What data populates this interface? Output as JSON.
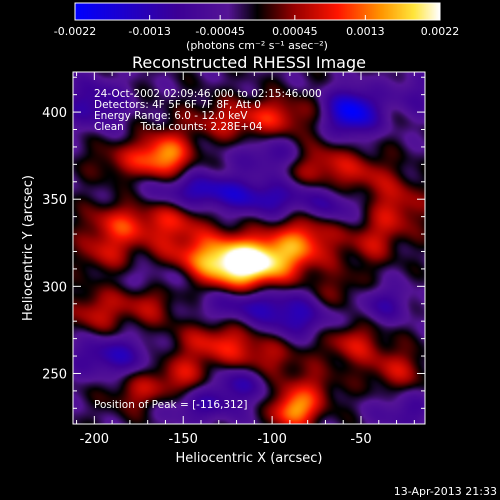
{
  "chart_data": {
    "type": "heatmap",
    "title": "Reconstructed RHESSI Image",
    "xlabel": "Heliocentric X (arcsec)",
    "ylabel": "Heliocentric Y (arcsec)",
    "xlim": [
      -212,
      -14
    ],
    "ylim": [
      221,
      423
    ],
    "x_ticks": [
      -200,
      -150,
      -100,
      -50
    ],
    "y_ticks": [
      250,
      300,
      350,
      400
    ],
    "colorbar": {
      "min": -0.0022,
      "max": 0.0022,
      "tick_values": [
        -0.0022,
        -0.0013,
        -0.00045,
        0.00045,
        0.0013,
        0.0022
      ],
      "tick_labels": [
        "-0.0022",
        "-0.0013",
        "-0.00045",
        "0.00045",
        "0.0013",
        "0.0022"
      ],
      "units_label": "(photons cm⁻² s⁻¹ asec⁻²)"
    },
    "annotations": [
      "24-Oct-2002 02:09:46.000 to 02:15:46.000",
      "Detectors: 4F 5F 6F 7F 8F, Att 0",
      "Energy Range: 6.0 - 12.0 keV",
      "Clean     Total counts: 2.28E+04"
    ],
    "peak_label": "Position of Peak = [-116,312]",
    "peak": [
      -116,
      312
    ],
    "blobs": [
      {
        "x": -116,
        "y": 312,
        "sx": 16,
        "sy": 10,
        "v": 0.0022
      },
      {
        "x": -140,
        "y": 316,
        "sx": 18,
        "sy": 11,
        "v": 0.0011
      },
      {
        "x": -95,
        "y": 318,
        "sx": 16,
        "sy": 9,
        "v": 0.001
      },
      {
        "x": -80,
        "y": 330,
        "sx": 12,
        "sy": 10,
        "v": 0.001
      },
      {
        "x": -160,
        "y": 375,
        "sx": 10,
        "sy": 9,
        "v": 0.0016
      },
      {
        "x": -182,
        "y": 372,
        "sx": 14,
        "sy": 8,
        "v": 0.0007
      },
      {
        "x": -125,
        "y": 395,
        "sx": 18,
        "sy": 8,
        "v": 0.0008
      },
      {
        "x": -95,
        "y": 398,
        "sx": 14,
        "sy": 8,
        "v": 0.0008
      },
      {
        "x": -185,
        "y": 335,
        "sx": 14,
        "sy": 9,
        "v": 0.0011
      },
      {
        "x": -155,
        "y": 338,
        "sx": 12,
        "sy": 9,
        "v": 0.0008
      },
      {
        "x": -75,
        "y": 370,
        "sx": 12,
        "sy": 9,
        "v": 0.0009
      },
      {
        "x": -50,
        "y": 365,
        "sx": 12,
        "sy": 9,
        "v": 0.0007
      },
      {
        "x": -30,
        "y": 345,
        "sx": 12,
        "sy": 12,
        "v": 0.0009
      },
      {
        "x": -45,
        "y": 325,
        "sx": 10,
        "sy": 9,
        "v": 0.0007
      },
      {
        "x": -170,
        "y": 290,
        "sx": 14,
        "sy": 9,
        "v": 0.0008
      },
      {
        "x": -200,
        "y": 285,
        "sx": 10,
        "sy": 9,
        "v": 0.0008
      },
      {
        "x": -130,
        "y": 268,
        "sx": 16,
        "sy": 8,
        "v": 0.001
      },
      {
        "x": -105,
        "y": 258,
        "sx": 14,
        "sy": 8,
        "v": 0.0007
      },
      {
        "x": -150,
        "y": 248,
        "sx": 14,
        "sy": 9,
        "v": 0.0009
      },
      {
        "x": -175,
        "y": 238,
        "sx": 12,
        "sy": 8,
        "v": 0.0007
      },
      {
        "x": -55,
        "y": 268,
        "sx": 12,
        "sy": 9,
        "v": 0.0009
      },
      {
        "x": -80,
        "y": 240,
        "sx": 12,
        "sy": 9,
        "v": 0.0008
      },
      {
        "x": -88,
        "y": 228,
        "sx": 8,
        "sy": 7,
        "v": 0.0016
      },
      {
        "x": -30,
        "y": 252,
        "sx": 12,
        "sy": 9,
        "v": 0.0008
      },
      {
        "x": -60,
        "y": 295,
        "sx": 12,
        "sy": 9,
        "v": 0.0007
      },
      {
        "x": -195,
        "y": 318,
        "sx": 10,
        "sy": 8,
        "v": 0.0007
      },
      {
        "x": -55,
        "y": 400,
        "sx": 10,
        "sy": 9,
        "v": -0.002
      },
      {
        "x": -20,
        "y": 410,
        "sx": 10,
        "sy": 9,
        "v": -0.0006
      },
      {
        "x": -200,
        "y": 405,
        "sx": 12,
        "sy": 10,
        "v": -0.001
      },
      {
        "x": -140,
        "y": 355,
        "sx": 20,
        "sy": 7,
        "v": -0.0012
      },
      {
        "x": -100,
        "y": 350,
        "sx": 20,
        "sy": 7,
        "v": -0.001
      },
      {
        "x": -110,
        "y": 290,
        "sx": 24,
        "sy": 7,
        "v": -0.001
      },
      {
        "x": -160,
        "y": 305,
        "sx": 16,
        "sy": 7,
        "v": -0.0007
      },
      {
        "x": -85,
        "y": 280,
        "sx": 16,
        "sy": 7,
        "v": -0.0009
      },
      {
        "x": -190,
        "y": 260,
        "sx": 16,
        "sy": 8,
        "v": -0.0011
      },
      {
        "x": -140,
        "y": 232,
        "sx": 16,
        "sy": 7,
        "v": -0.0009
      },
      {
        "x": -40,
        "y": 290,
        "sx": 12,
        "sy": 8,
        "v": -0.0009
      },
      {
        "x": -100,
        "y": 375,
        "sx": 14,
        "sy": 7,
        "v": -0.0008
      },
      {
        "x": -65,
        "y": 345,
        "sx": 12,
        "sy": 7,
        "v": -0.0007
      },
      {
        "x": -120,
        "y": 245,
        "sx": 12,
        "sy": 7,
        "v": -0.001
      },
      {
        "x": -25,
        "y": 228,
        "sx": 12,
        "sy": 8,
        "v": -0.0007
      }
    ]
  },
  "footer": {
    "timestamp": "13-Apr-2013 21:33"
  }
}
